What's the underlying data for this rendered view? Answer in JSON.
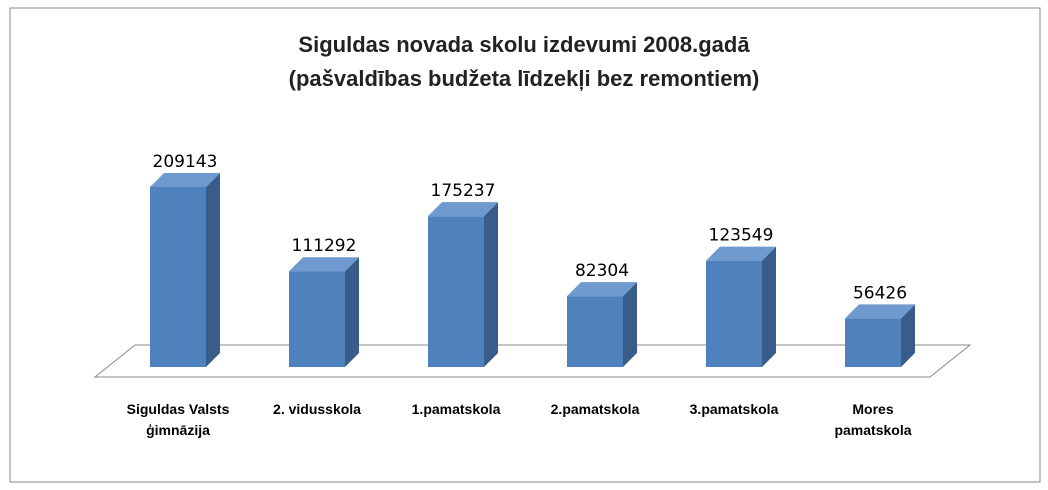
{
  "chart_data": {
    "type": "bar3d",
    "title": "Siguldas novada skolu izdevumi 2008.gadā",
    "subtitle": "(pašvaldības budžeta līdzekļi bez remontiem)",
    "categories": [
      "Siguldas Valsts ģimnāzija",
      "2. vidusskola",
      "1.pamatskola",
      "2.pamatskola",
      "3.pamatskola",
      "Mores pamatskola"
    ],
    "values": [
      209143,
      111292,
      175237,
      82304,
      123549,
      56426
    ],
    "color": "#4f81bd"
  }
}
